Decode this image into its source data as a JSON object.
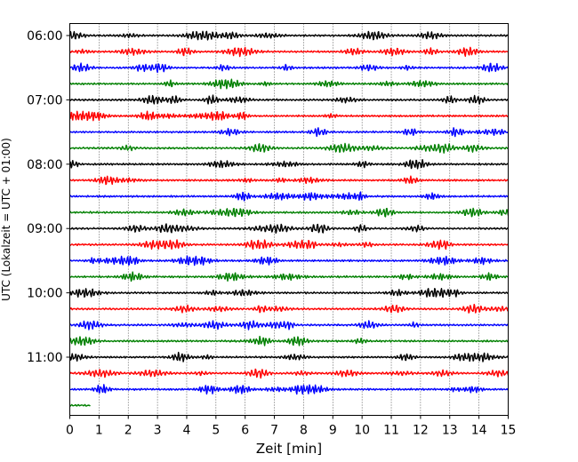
{
  "chart_data": {
    "type": "line",
    "title": "",
    "xlabel": "Zeit  [min]",
    "ylabel": "UTC (Lokalzeit = UTC + 01:00)",
    "xlim": [
      0,
      15
    ],
    "x_ticks": [
      0,
      1,
      2,
      3,
      4,
      5,
      6,
      7,
      8,
      9,
      10,
      11,
      12,
      13,
      14,
      15
    ],
    "x_tick_labels": [
      "0",
      "1",
      "2",
      "3",
      "4",
      "5",
      "6",
      "7",
      "8",
      "9",
      "10",
      "11",
      "12",
      "13",
      "14",
      "15"
    ],
    "vertical_grid": "dotted",
    "y_tick_labels": [
      "06:00",
      "07:00",
      "08:00",
      "09:00",
      "10:00",
      "11:00"
    ],
    "y_tick_rows": [
      0,
      4,
      8,
      12,
      16,
      20
    ],
    "trace_colors": [
      "#000000",
      "#ff0000",
      "#0000ff",
      "#008000"
    ],
    "rows": [
      {
        "start": "06:00",
        "end_min": 15
      },
      {
        "start": "06:15",
        "end_min": 15
      },
      {
        "start": "06:30",
        "end_min": 15
      },
      {
        "start": "06:45",
        "end_min": 15
      },
      {
        "start": "07:00",
        "end_min": 15
      },
      {
        "start": "07:15",
        "end_min": 15
      },
      {
        "start": "07:30",
        "end_min": 15
      },
      {
        "start": "07:45",
        "end_min": 15
      },
      {
        "start": "08:00",
        "end_min": 15
      },
      {
        "start": "08:15",
        "end_min": 15
      },
      {
        "start": "08:30",
        "end_min": 15
      },
      {
        "start": "08:45",
        "end_min": 15
      },
      {
        "start": "09:00",
        "end_min": 15
      },
      {
        "start": "09:15",
        "end_min": 15
      },
      {
        "start": "09:30",
        "end_min": 15
      },
      {
        "start": "09:45",
        "end_min": 15
      },
      {
        "start": "10:00",
        "end_min": 15
      },
      {
        "start": "10:15",
        "end_min": 15
      },
      {
        "start": "10:30",
        "end_min": 15
      },
      {
        "start": "10:45",
        "end_min": 15
      },
      {
        "start": "11:00",
        "end_min": 15
      },
      {
        "start": "11:15",
        "end_min": 15
      },
      {
        "start": "11:30",
        "end_min": 15
      },
      {
        "start": "11:45",
        "end_min": 0.7
      }
    ]
  }
}
